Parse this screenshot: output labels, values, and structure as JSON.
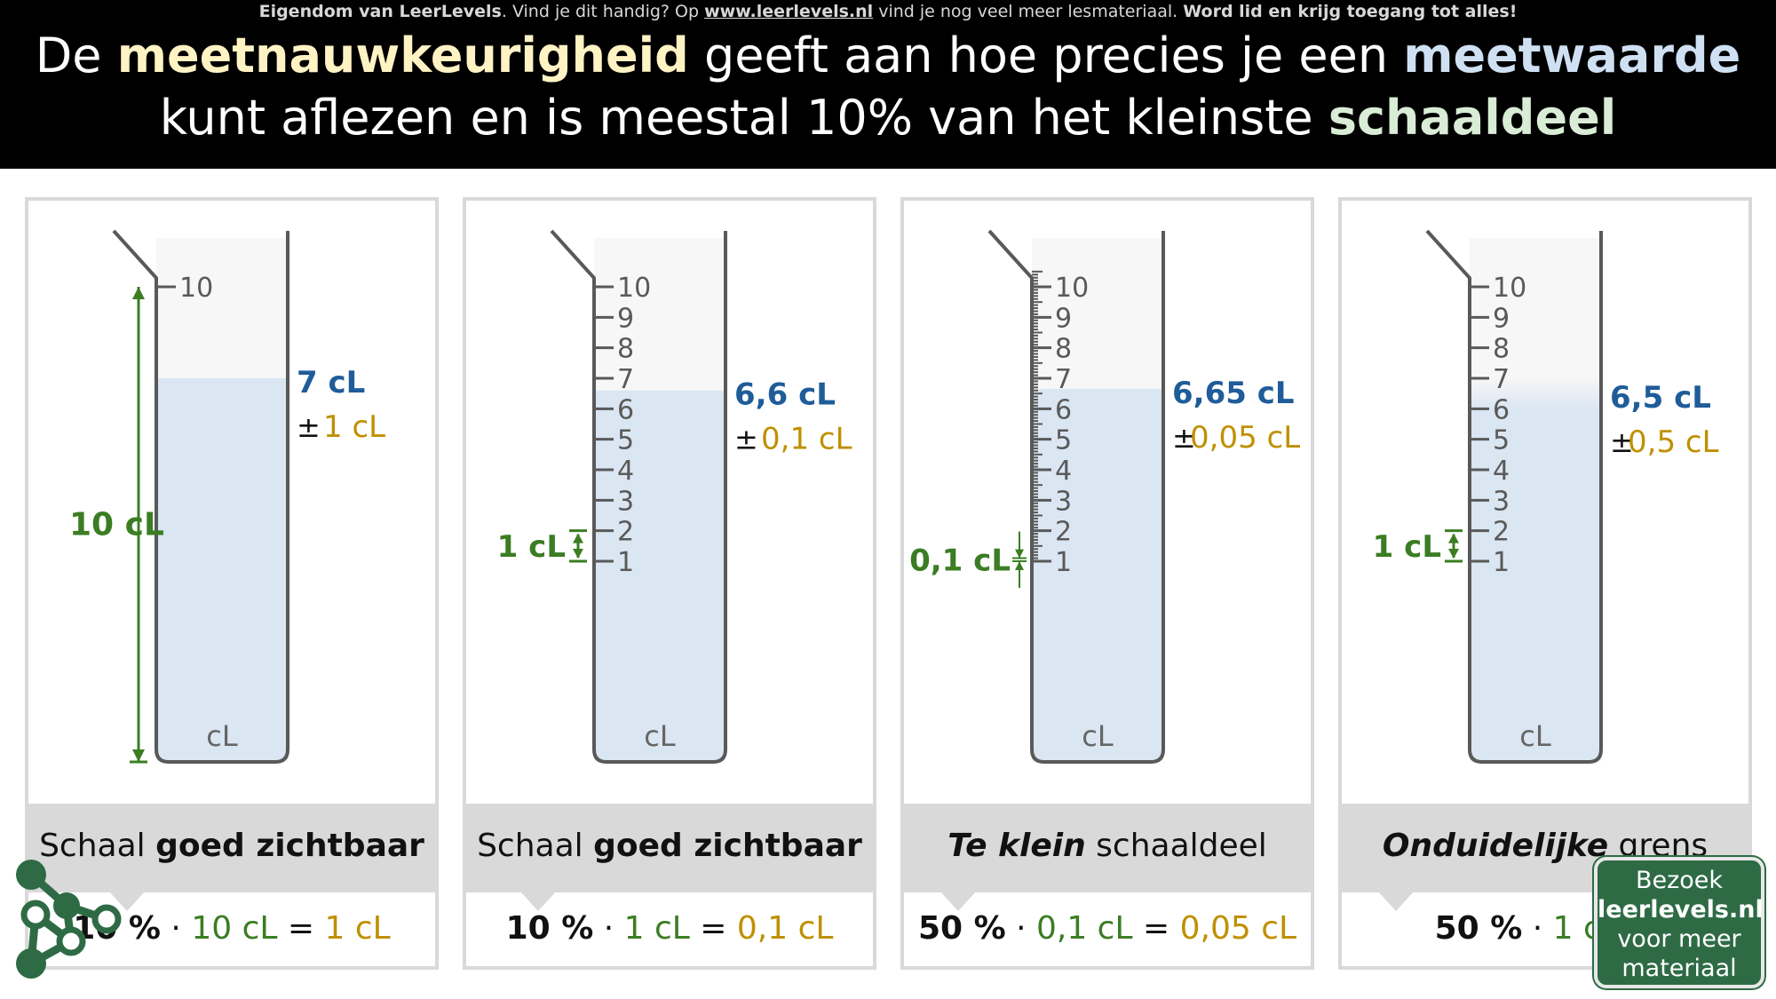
{
  "header": {
    "notice": {
      "owner": "Eigendom van LeerLevels",
      "text1": ". Vind je dit handig? Op ",
      "url": "www.leerlevels.nl",
      "text2": " vind je nog veel meer lesmateriaal. ",
      "cta": "Word lid en krijg toegang tot alles!"
    },
    "headline": {
      "line1_a": "De ",
      "term1": "meetnauwkeurigheid",
      "line1_b": " geeft aan hoe precies je een ",
      "term2": "meetwaarde",
      "line2_a": "kunt aflezen en is meestal 10% van het kleinste ",
      "term3": "schaaldeel"
    }
  },
  "colors": {
    "measure_blue": "#1f5c99",
    "accuracy_gold": "#bf9000",
    "scale_green": "#3b7d23",
    "liquid": "#dae6f2",
    "cylinder_outline": "#595959",
    "brand_green": "#2e6b45"
  },
  "panels": [
    {
      "tick_labels": [
        "10"
      ],
      "unit": "cL",
      "reading": "7 cL",
      "pm": "±",
      "accuracy": "1 cL",
      "division": "10 cL",
      "caption_plain": "Schaal ",
      "caption_bold": "goed zichtbaar",
      "caption_bold_first": false,
      "caption_italic": false,
      "formula_pct": "10 %",
      "formula_dot": " · ",
      "formula_div": "10 cL",
      "formula_eq": " = ",
      "formula_result": "1 cL"
    },
    {
      "tick_labels": [
        "10",
        "9",
        "8",
        "7",
        "6",
        "5",
        "4",
        "3",
        "2",
        "1"
      ],
      "unit": "cL",
      "reading": "6,6 cL",
      "pm": "±",
      "accuracy": "0,1 cL",
      "division": "1 cL",
      "caption_plain": "Schaal ",
      "caption_bold": "goed zichtbaar",
      "caption_bold_first": false,
      "caption_italic": false,
      "formula_pct": "10 %",
      "formula_dot": " · ",
      "formula_div": "1 cL",
      "formula_eq": " = ",
      "formula_result": "0,1 cL"
    },
    {
      "tick_labels": [
        "10",
        "9",
        "8",
        "7",
        "6",
        "5",
        "4",
        "3",
        "2",
        "1"
      ],
      "unit": "cL",
      "reading": "6,65 cL",
      "pm": "±",
      "accuracy": "0,05 cL",
      "division": "0,1 cL",
      "caption_plain": " schaaldeel",
      "caption_bold": "Te klein",
      "caption_bold_first": true,
      "caption_italic": true,
      "formula_pct": "50 %",
      "formula_dot": " · ",
      "formula_div": "0,1 cL",
      "formula_eq": " = ",
      "formula_result": "0,05 cL"
    },
    {
      "tick_labels": [
        "10",
        "9",
        "8",
        "7",
        "6",
        "5",
        "4",
        "3",
        "2",
        "1"
      ],
      "unit": "cL",
      "reading": "6,5 cL",
      "pm": "±",
      "accuracy": "0,5 cL",
      "division": "1 cL",
      "caption_plain": " grens",
      "caption_bold": "Onduidelijke",
      "caption_bold_first": true,
      "caption_italic": true,
      "formula_pct": "50 %",
      "formula_dot": " · ",
      "formula_div": "1 cL",
      "formula_eq": " = ",
      "formula_result": ""
    }
  ],
  "visit_button": {
    "line1": "Bezoek",
    "line2": "leerlevels.nl",
    "line3": "voor meer",
    "line4": "materiaal"
  }
}
